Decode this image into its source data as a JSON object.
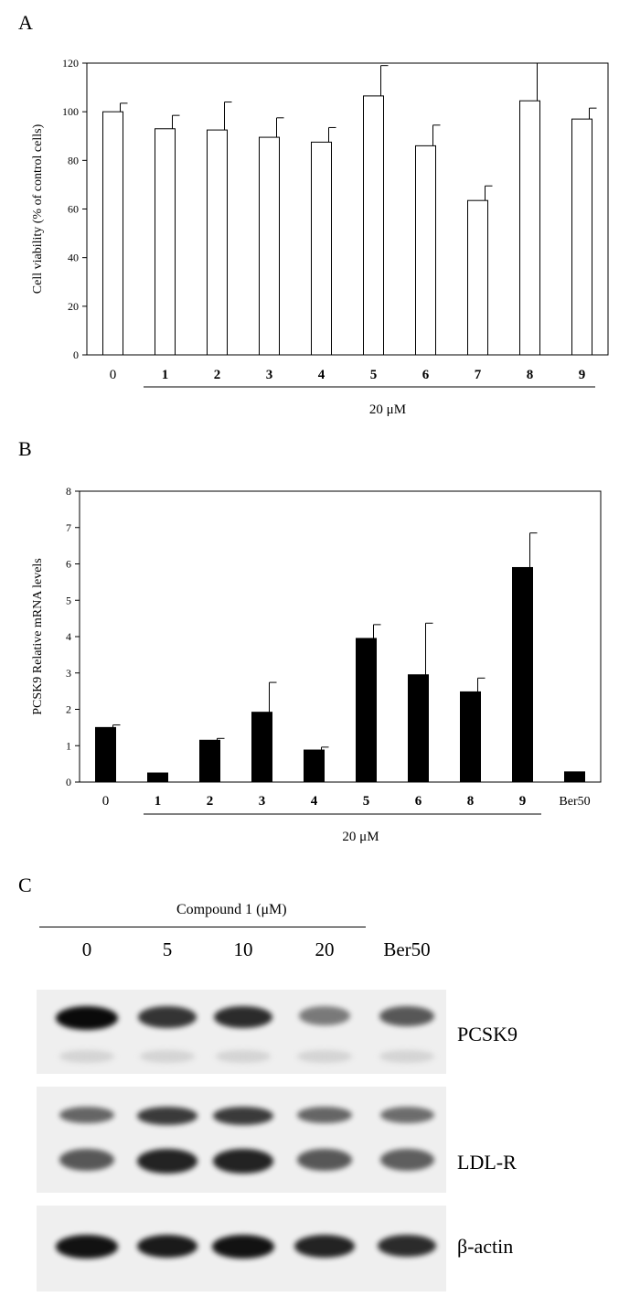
{
  "panels": {
    "a_letter": "A",
    "b_letter": "B",
    "c_letter": "C"
  },
  "chart_data": [
    {
      "type": "bar",
      "panel": "A",
      "categories": [
        "0",
        "1",
        "2",
        "3",
        "4",
        "5",
        "6",
        "7",
        "8",
        "9"
      ],
      "values": [
        100,
        93,
        92.5,
        89.5,
        87.5,
        106.5,
        86,
        63.5,
        104.5,
        97
      ],
      "errors": [
        3.5,
        5.5,
        11.5,
        8,
        6,
        12.5,
        8.5,
        6,
        15.5,
        4.5
      ],
      "ylabel": "Cell viability  (% of control  cells)",
      "ylim": [
        0,
        120
      ],
      "yticks": [
        0,
        20,
        40,
        60,
        80,
        100,
        120
      ],
      "group_label": "20 μM",
      "bar_fill": "#ffffff",
      "bar_stroke": "#000000"
    },
    {
      "type": "bar",
      "panel": "B",
      "categories": [
        "0",
        "1",
        "2",
        "3",
        "4",
        "5",
        "6",
        "8",
        "9",
        "Ber50"
      ],
      "values": [
        1.5,
        0.25,
        1.15,
        1.92,
        0.88,
        3.95,
        2.95,
        2.48,
        5.9,
        0.28
      ],
      "errors": [
        0.07,
        0,
        0.05,
        0.82,
        0.08,
        0.38,
        1.42,
        0.38,
        0.95,
        0
      ],
      "ylabel": "PCSK9  Relative  mRNA levels",
      "ylim": [
        0,
        8
      ],
      "yticks": [
        0,
        1,
        2,
        3,
        4,
        5,
        6,
        7,
        8
      ],
      "group_label": "20 μM",
      "bar_fill": "#000000",
      "bar_stroke": "#000000"
    }
  ],
  "blot": {
    "header": "Compound  1 (μM)",
    "lanes": [
      "0",
      "5",
      "10",
      "20",
      "Ber50"
    ],
    "rows": [
      {
        "label": "PCSK9",
        "band_strength": [
          1.0,
          0.75,
          0.8,
          0.35,
          0.55
        ]
      },
      {
        "label": "LDL-R",
        "band_strength": [
          0.55,
          0.85,
          0.85,
          0.55,
          0.5
        ]
      },
      {
        "label": "β-actin",
        "band_strength": [
          0.95,
          0.9,
          0.95,
          0.85,
          0.8
        ]
      }
    ]
  }
}
